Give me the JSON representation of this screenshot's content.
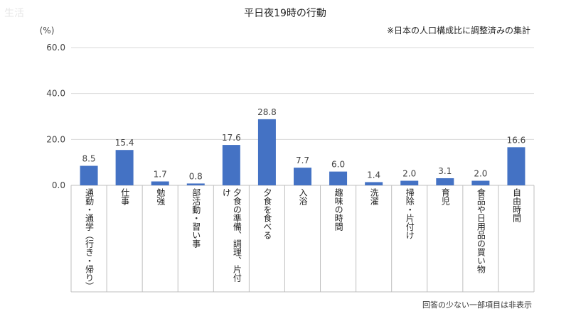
{
  "corner_mark": "生活",
  "chart_data": {
    "type": "bar",
    "title": "平日夜19時の行動",
    "unit_label": "(%)",
    "note": "※日本の人口構成比に調整済みの集計",
    "footnote": "回答の少ない一部項目は非表示",
    "ylim": [
      0,
      60
    ],
    "yticks": [
      "0.0",
      "20.0",
      "40.0",
      "60.0"
    ],
    "grid": true,
    "categories": [
      "通勤・通学（行き・帰り）",
      "仕事",
      "勉強",
      "部活動・習い事",
      "夕食の準備、調理、片付け",
      "夕食を食べる",
      "入浴",
      "趣味の時間",
      "洗濯",
      "掃除・片付け",
      "育児",
      "食品や日用品の買い物",
      "自由時間"
    ],
    "values": [
      8.5,
      15.4,
      1.7,
      0.8,
      17.6,
      28.8,
      7.7,
      6.0,
      1.4,
      2.0,
      3.1,
      2.0,
      16.6
    ],
    "value_labels": [
      "8.5",
      "15.4",
      "1.7",
      "0.8",
      "17.6",
      "28.8",
      "7.7",
      "6.0",
      "1.4",
      "2.0",
      "3.1",
      "2.0",
      "16.6"
    ],
    "bar_color": "#4472c4"
  }
}
